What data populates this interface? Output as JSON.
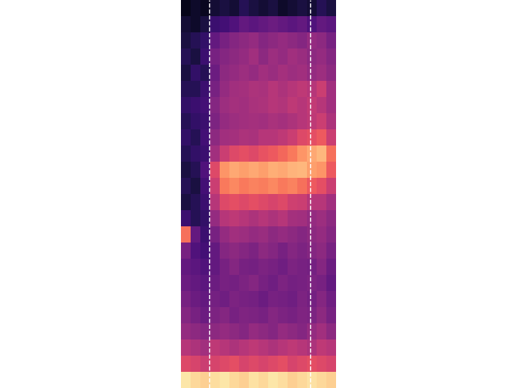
{
  "chart_data": {
    "type": "heatmap",
    "tick_labels": false,
    "xlim": [
      0,
      16
    ],
    "ylim": [
      0,
      24
    ],
    "color_range": [
      0,
      1
    ],
    "vertical_lines": [
      2.9,
      13.3
    ],
    "cells": [
      [
        0.05,
        0.08,
        0.06,
        0.1,
        0.12,
        0.1,
        0.15,
        0.12,
        0.1,
        0.12,
        0.08,
        0.1,
        0.12,
        0.1,
        0.15,
        0.12
      ],
      [
        0.1,
        0.08,
        0.12,
        0.2,
        0.22,
        0.25,
        0.3,
        0.28,
        0.3,
        0.32,
        0.3,
        0.28,
        0.3,
        0.25,
        0.3,
        0.28
      ],
      [
        0.12,
        0.15,
        0.18,
        0.3,
        0.35,
        0.38,
        0.4,
        0.42,
        0.38,
        0.4,
        0.42,
        0.4,
        0.38,
        0.42,
        0.4,
        0.35
      ],
      [
        0.15,
        0.12,
        0.2,
        0.35,
        0.38,
        0.4,
        0.42,
        0.45,
        0.4,
        0.44,
        0.42,
        0.45,
        0.43,
        0.4,
        0.42,
        0.38
      ],
      [
        0.12,
        0.18,
        0.15,
        0.32,
        0.4,
        0.42,
        0.44,
        0.42,
        0.45,
        0.43,
        0.46,
        0.44,
        0.45,
        0.42,
        0.44,
        0.4
      ],
      [
        0.15,
        0.15,
        0.2,
        0.35,
        0.42,
        0.45,
        0.46,
        0.48,
        0.47,
        0.5,
        0.48,
        0.5,
        0.52,
        0.5,
        0.55,
        0.45
      ],
      [
        0.18,
        0.2,
        0.22,
        0.38,
        0.44,
        0.46,
        0.45,
        0.47,
        0.48,
        0.5,
        0.49,
        0.52,
        0.5,
        0.53,
        0.5,
        0.45
      ],
      [
        0.15,
        0.18,
        0.2,
        0.36,
        0.42,
        0.44,
        0.45,
        0.46,
        0.45,
        0.47,
        0.46,
        0.48,
        0.5,
        0.52,
        0.55,
        0.48
      ],
      [
        0.18,
        0.15,
        0.22,
        0.4,
        0.45,
        0.46,
        0.48,
        0.47,
        0.5,
        0.5,
        0.52,
        0.55,
        0.6,
        0.62,
        0.65,
        0.55
      ],
      [
        0.15,
        0.18,
        0.2,
        0.45,
        0.55,
        0.6,
        0.62,
        0.6,
        0.63,
        0.65,
        0.68,
        0.72,
        0.78,
        0.82,
        0.85,
        0.7
      ],
      [
        0.12,
        0.15,
        0.25,
        0.6,
        0.78,
        0.82,
        0.8,
        0.82,
        0.8,
        0.83,
        0.82,
        0.84,
        0.85,
        0.8,
        0.78,
        0.65
      ],
      [
        0.15,
        0.12,
        0.22,
        0.55,
        0.72,
        0.75,
        0.72,
        0.74,
        0.73,
        0.75,
        0.72,
        0.74,
        0.7,
        0.65,
        0.62,
        0.55
      ],
      [
        0.12,
        0.15,
        0.2,
        0.5,
        0.6,
        0.62,
        0.6,
        0.62,
        0.6,
        0.58,
        0.6,
        0.56,
        0.55,
        0.5,
        0.5,
        0.45
      ],
      [
        0.2,
        0.15,
        0.18,
        0.42,
        0.5,
        0.52,
        0.5,
        0.48,
        0.5,
        0.48,
        0.5,
        0.46,
        0.45,
        0.42,
        0.44,
        0.4
      ],
      [
        0.7,
        0.3,
        0.2,
        0.35,
        0.42,
        0.45,
        0.44,
        0.42,
        0.43,
        0.4,
        0.42,
        0.4,
        0.38,
        0.4,
        0.42,
        0.38
      ],
      [
        0.35,
        0.25,
        0.22,
        0.3,
        0.38,
        0.4,
        0.38,
        0.36,
        0.4,
        0.38,
        0.35,
        0.38,
        0.36,
        0.38,
        0.4,
        0.35
      ],
      [
        0.3,
        0.28,
        0.25,
        0.3,
        0.35,
        0.38,
        0.35,
        0.34,
        0.36,
        0.35,
        0.33,
        0.36,
        0.35,
        0.34,
        0.38,
        0.32
      ],
      [
        0.32,
        0.3,
        0.28,
        0.32,
        0.35,
        0.34,
        0.36,
        0.38,
        0.35,
        0.33,
        0.36,
        0.34,
        0.35,
        0.36,
        0.35,
        0.3
      ],
      [
        0.35,
        0.32,
        0.3,
        0.34,
        0.33,
        0.36,
        0.35,
        0.34,
        0.32,
        0.35,
        0.34,
        0.33,
        0.36,
        0.34,
        0.38,
        0.33
      ],
      [
        0.38,
        0.35,
        0.32,
        0.36,
        0.38,
        0.35,
        0.37,
        0.36,
        0.35,
        0.38,
        0.36,
        0.35,
        0.37,
        0.36,
        0.4,
        0.35
      ],
      [
        0.42,
        0.4,
        0.38,
        0.4,
        0.42,
        0.4,
        0.38,
        0.42,
        0.4,
        0.38,
        0.42,
        0.4,
        0.38,
        0.42,
        0.45,
        0.4
      ],
      [
        0.5,
        0.48,
        0.45,
        0.52,
        0.5,
        0.48,
        0.5,
        0.52,
        0.5,
        0.48,
        0.5,
        0.52,
        0.5,
        0.48,
        0.52,
        0.5
      ],
      [
        0.6,
        0.58,
        0.55,
        0.58,
        0.6,
        0.62,
        0.58,
        0.6,
        0.58,
        0.6,
        0.62,
        0.58,
        0.6,
        0.62,
        0.6,
        0.58
      ],
      [
        0.95,
        0.92,
        0.9,
        0.93,
        0.95,
        0.92,
        0.9,
        0.94,
        0.92,
        0.95,
        0.93,
        0.9,
        0.92,
        0.94,
        0.92,
        0.9
      ]
    ]
  }
}
